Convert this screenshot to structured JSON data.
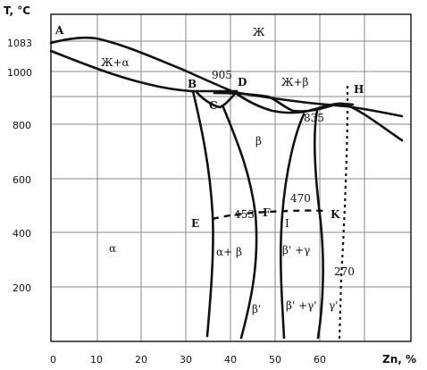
{
  "axes": {
    "y_title": "T, °C",
    "x_title": "Zn, %",
    "y_ticks": [
      "1083",
      "1000",
      "800",
      "600",
      "400",
      "200"
    ],
    "x_ticks": [
      "0",
      "10",
      "20",
      "30",
      "40",
      "50",
      "60"
    ]
  },
  "points": {
    "A": "A",
    "B": "B",
    "C": "C",
    "D": "D",
    "E": "E",
    "F": "F",
    "H": "H",
    "K": "K",
    "I": "I"
  },
  "temps": {
    "t905": "905",
    "t835": "835",
    "t470": "470",
    "t453": "453",
    "t270": "270"
  },
  "phases": {
    "liquid": "Ж",
    "liquid_alpha": "Ж+α",
    "liquid_beta": "Ж+β",
    "alpha": "α",
    "beta": "β",
    "alpha_beta": "α+ β",
    "beta_prime": "β'",
    "beta_prime_gamma": "β' +γ",
    "beta_prime_gamma_prime": "β' +γ'",
    "gamma_prime": "γ'"
  },
  "colors": {
    "ink": "#111111",
    "grid": "#8a8a8a"
  }
}
